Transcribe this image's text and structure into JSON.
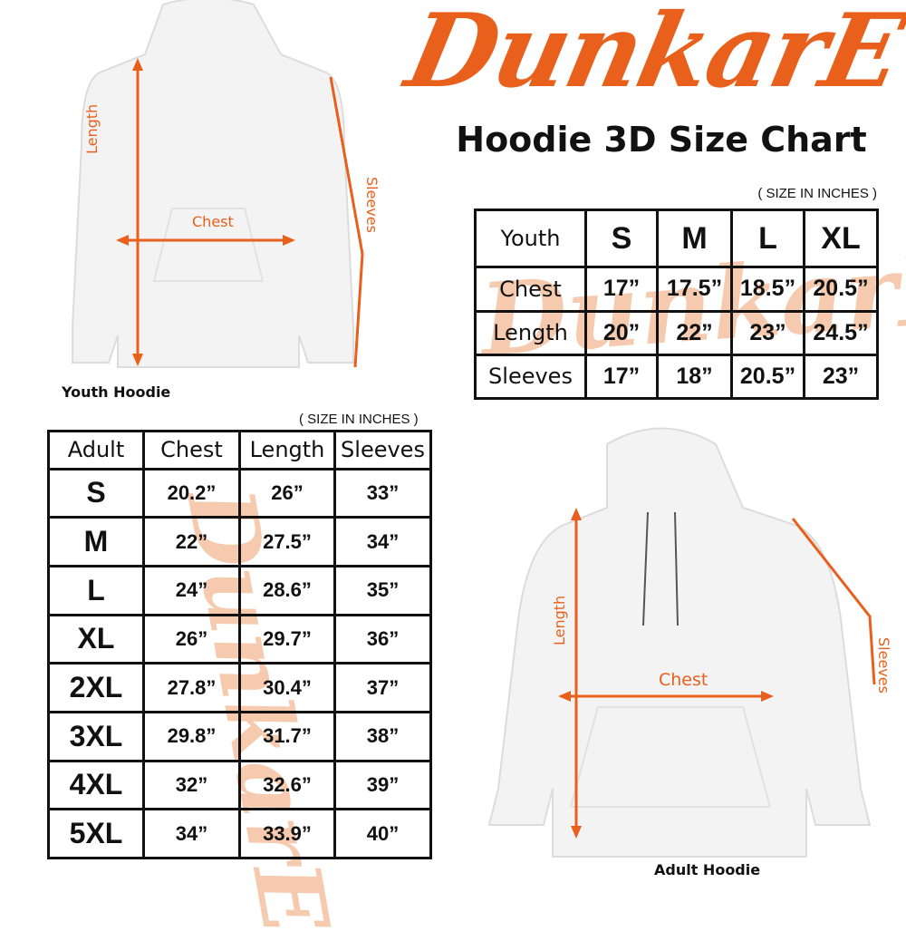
{
  "brand": {
    "logo_text": "DunkarE",
    "accent": "#e8601c",
    "watermark_color": "#f4b994"
  },
  "title": "Hoodie 3D Size Chart",
  "youth": {
    "unit_note": "( SIZE IN INCHES )",
    "caption": "Youth Hoodie",
    "labels": {
      "length": "Length",
      "chest": "Chest",
      "sleeves": "Sleeves"
    },
    "table": {
      "header": [
        "Youth",
        "S",
        "M",
        "L",
        "XL"
      ],
      "rows": [
        [
          "Chest",
          "17”",
          "17.5”",
          "18.5”",
          "20.5”"
        ],
        [
          "Length",
          "20”",
          "22”",
          "23”",
          "24.5”"
        ],
        [
          "Sleeves",
          "17”",
          "18”",
          "20.5”",
          "23”"
        ]
      ]
    }
  },
  "adult": {
    "unit_note": "( SIZE IN INCHES )",
    "caption": "Adult Hoodie",
    "labels": {
      "length": "Length",
      "chest": "Chest",
      "sleeves": "Sleeves"
    },
    "table": {
      "header": [
        "Adult",
        "Chest",
        "Length",
        "Sleeves"
      ],
      "rows": [
        [
          "S",
          "20.2”",
          "26”",
          "33”"
        ],
        [
          "M",
          "22”",
          "27.5”",
          "34”"
        ],
        [
          "L",
          "24”",
          "28.6”",
          "35”"
        ],
        [
          "XL",
          "26”",
          "29.7”",
          "36”"
        ],
        [
          "2XL",
          "27.8”",
          "30.4”",
          "37”"
        ],
        [
          "3XL",
          "29.8”",
          "31.7”",
          "38”"
        ],
        [
          "4XL",
          "32”",
          "32.6”",
          "39”"
        ],
        [
          "5XL",
          "34”",
          "33.9”",
          "40”"
        ]
      ]
    }
  }
}
